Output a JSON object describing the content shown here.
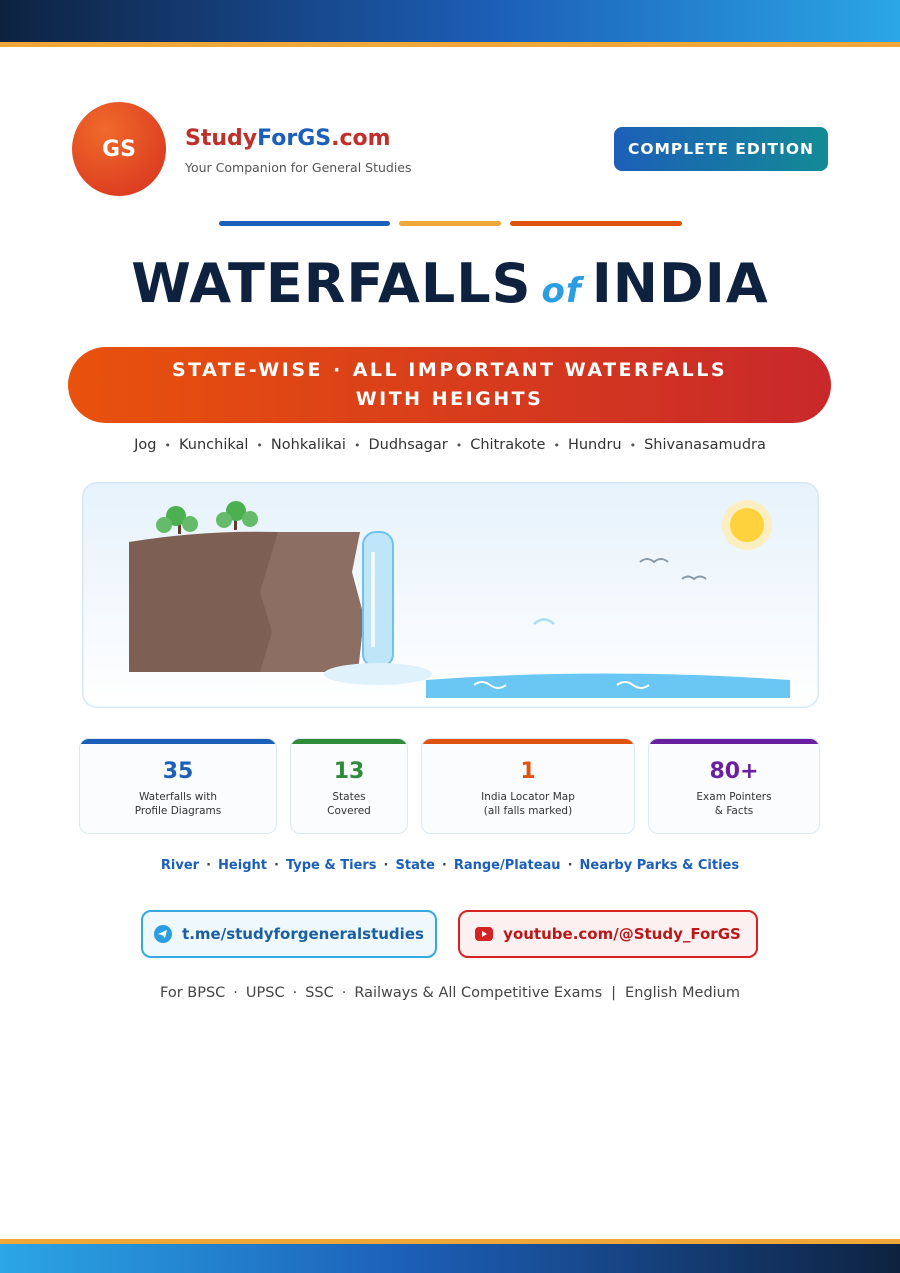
{
  "brand": {
    "logo": "GS",
    "name": [
      "Study",
      "ForGS",
      ".com"
    ],
    "tagline": "Your Companion for General Studies"
  },
  "badge": "COMPLETE EDITION",
  "title": {
    "main": "WATERFALLS",
    "connector": "of",
    "end": "INDIA"
  },
  "banner": [
    "STATE-WISE",
    "ALL IMPORTANT WATERFALLS WITH HEIGHTS"
  ],
  "featured": [
    "Jog",
    "Kunchikal",
    "Nohkalikai",
    "Dudhsagar",
    "Chitrakote",
    "Hundru",
    "Shivanasamudra"
  ],
  "stats": [
    {
      "value": 35,
      "lines": [
        "Waterfalls with",
        "Profile Diagrams"
      ]
    },
    {
      "value": 13,
      "lines": [
        "States",
        "Covered"
      ]
    },
    {
      "value": 1,
      "lines": [
        "India Locator Map",
        "(all falls marked)"
      ]
    },
    {
      "value": "80+",
      "lines": [
        "Exam Pointers",
        "& Facts"
      ]
    }
  ],
  "topics": [
    "River",
    "Height",
    "Type & Tiers",
    "State",
    "Range/Plateau",
    "Nearby Parks & Cities"
  ],
  "links": {
    "telegram": "t.me/studyforgeneralstudies",
    "youtube": "youtube.com/@Study_ForGS"
  },
  "footer": {
    "exams": [
      "For BPSC",
      "UPSC",
      "SSC",
      "Railways & All Competitive Exams"
    ],
    "medium": "English Medium"
  }
}
